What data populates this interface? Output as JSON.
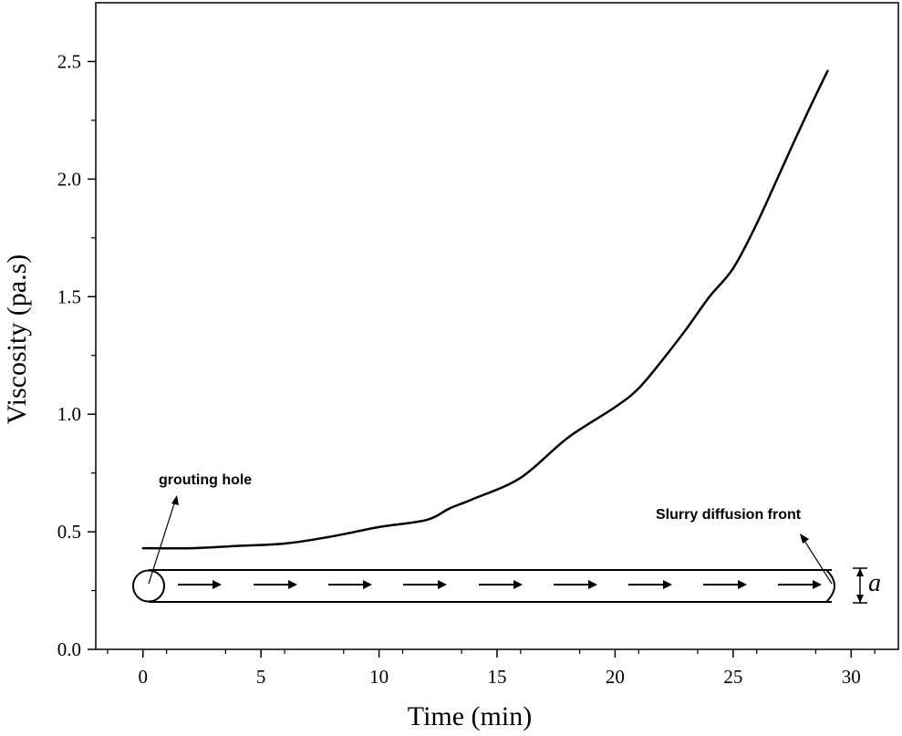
{
  "chart_data": {
    "type": "line",
    "title": "",
    "xlabel": "Time (min)",
    "ylabel": "Viscosity (pa.s)",
    "xlim": [
      -2,
      32
    ],
    "ylim": [
      0,
      2.75
    ],
    "x_ticks": [
      0,
      5,
      10,
      15,
      20,
      25,
      30
    ],
    "y_ticks": [
      0.0,
      0.5,
      1.0,
      1.5,
      2.0,
      2.5
    ],
    "y_tick_labels": [
      "0.0",
      "0.5",
      "1.0",
      "1.5",
      "2.0",
      "2.5"
    ],
    "grid": false,
    "series": [
      {
        "name": "Viscosity",
        "color": "#000000",
        "x": [
          0,
          2,
          4,
          6,
          8,
          10,
          12,
          13,
          14,
          16,
          18,
          20,
          21,
          22,
          23,
          24,
          25,
          26,
          27,
          28,
          29
        ],
        "y": [
          0.43,
          0.43,
          0.44,
          0.45,
          0.48,
          0.52,
          0.55,
          0.6,
          0.64,
          0.73,
          0.9,
          1.03,
          1.11,
          1.23,
          1.36,
          1.5,
          1.62,
          1.81,
          2.03,
          2.25,
          2.46
        ]
      }
    ],
    "annotations": {
      "grouting_hole": "grouting hole",
      "diffusion_front": "Slurry diffusion front",
      "aperture": "a"
    }
  }
}
